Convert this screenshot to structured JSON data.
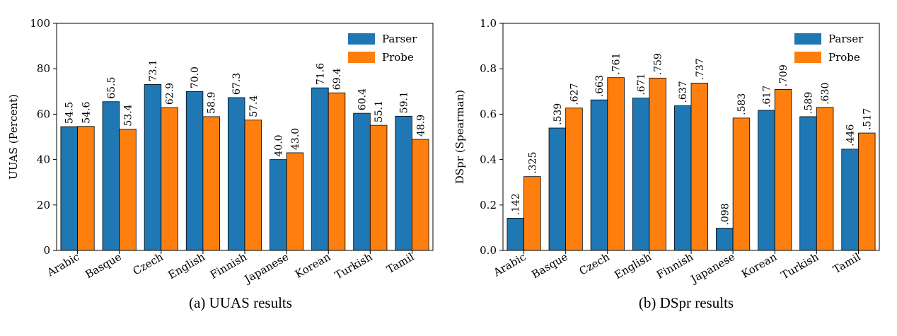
{
  "figure": {
    "captions": [
      "(a) UUAS results",
      "(b) DSpr results"
    ]
  },
  "colors": {
    "parser": "#1f77b4",
    "probe": "#ff7f0e"
  },
  "chart_data": [
    {
      "type": "bar",
      "categories": [
        "Arabic",
        "Basque",
        "Czech",
        "English",
        "Finnish",
        "Japanese",
        "Korean",
        "Turkish",
        "Tamil"
      ],
      "series": [
        {
          "name": "Parser",
          "values": [
            54.5,
            65.5,
            73.1,
            70.0,
            67.3,
            40.0,
            71.6,
            60.4,
            59.1
          ],
          "labels": [
            "54.5",
            "65.5",
            "73.1",
            "70.0",
            "67.3",
            "40.0",
            "71.6",
            "60.4",
            "59.1"
          ]
        },
        {
          "name": "Probe",
          "values": [
            54.6,
            53.4,
            62.9,
            58.9,
            57.4,
            43.0,
            69.4,
            55.1,
            48.9
          ],
          "labels": [
            "54.6",
            "53.4",
            "62.9",
            "58.9",
            "57.4",
            "43.0",
            "69.4",
            "55.1",
            "48.9"
          ]
        }
      ],
      "title": "",
      "xlabel": "",
      "ylabel": "UUAS (Percent)",
      "ylim": [
        0,
        100
      ],
      "yticks": [
        "0",
        "20",
        "40",
        "60",
        "80",
        "100"
      ],
      "ytick_values": [
        0,
        20,
        40,
        60,
        80,
        100
      ],
      "legend": "top-right",
      "grid": false
    },
    {
      "type": "bar",
      "categories": [
        "Arabic",
        "Basque",
        "Czech",
        "English",
        "Finnish",
        "Japanese",
        "Korean",
        "Turkish",
        "Tamil"
      ],
      "series": [
        {
          "name": "Parser",
          "values": [
            0.142,
            0.539,
            0.663,
            0.671,
            0.637,
            0.098,
            0.617,
            0.589,
            0.446
          ],
          "labels": [
            ".142",
            ".539",
            ".663",
            ".671",
            ".637",
            ".098",
            ".617",
            ".589",
            ".446"
          ]
        },
        {
          "name": "Probe",
          "values": [
            0.325,
            0.627,
            0.761,
            0.759,
            0.737,
            0.583,
            0.709,
            0.63,
            0.517
          ],
          "labels": [
            ".325",
            ".627",
            ".761",
            ".759",
            ".737",
            ".583",
            ".709",
            ".630",
            ".517"
          ]
        }
      ],
      "title": "",
      "xlabel": "",
      "ylabel": "DSpr (Spearman)",
      "ylim": [
        0,
        1.0
      ],
      "yticks": [
        "0.0",
        "0.2",
        "0.4",
        "0.6",
        "0.8",
        "1.0"
      ],
      "ytick_values": [
        0,
        0.2,
        0.4,
        0.6,
        0.8,
        1.0
      ],
      "legend": "top-right",
      "grid": false
    }
  ]
}
